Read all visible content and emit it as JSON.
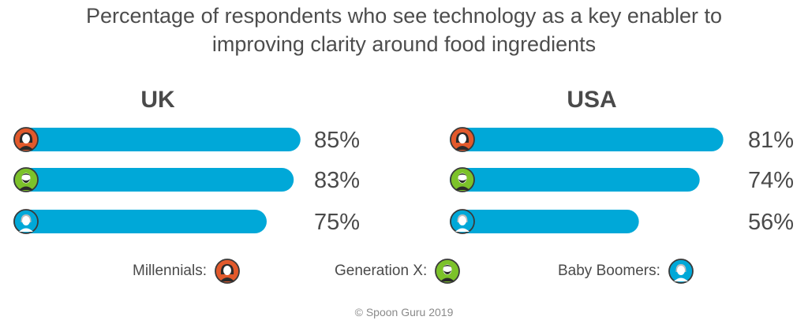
{
  "title_line1": "Percentage of respondents who see technology as a key enabler to",
  "title_line2": "improving clarity around food ingredients",
  "footer": "© Spoon Guru 2019",
  "colors": {
    "bar": "#00a8d8",
    "millennials": "#e2592b",
    "genx": "#7cc22a",
    "boomers": "#00a8d8",
    "text": "#4a4a4a"
  },
  "legend": [
    {
      "label": "Millennials:",
      "icon": "millennial-avatar-icon",
      "group": "millennials"
    },
    {
      "label": "Generation X:",
      "icon": "genx-avatar-icon",
      "group": "genx"
    },
    {
      "label": "Baby Boomers:",
      "icon": "boomer-avatar-icon",
      "group": "boomers"
    }
  ],
  "chart_data": [
    {
      "type": "bar",
      "title": "UK",
      "orientation": "horizontal",
      "categories": [
        "Millennials",
        "Generation X",
        "Baby Boomers"
      ],
      "values": [
        85,
        83,
        75
      ],
      "labels": [
        "85%",
        "83%",
        "75%"
      ]
    },
    {
      "type": "bar",
      "title": "USA",
      "orientation": "horizontal",
      "categories": [
        "Millennials",
        "Generation X",
        "Baby Boomers"
      ],
      "values": [
        81,
        74,
        56
      ],
      "labels": [
        "81%",
        "74%",
        "56%"
      ]
    }
  ]
}
